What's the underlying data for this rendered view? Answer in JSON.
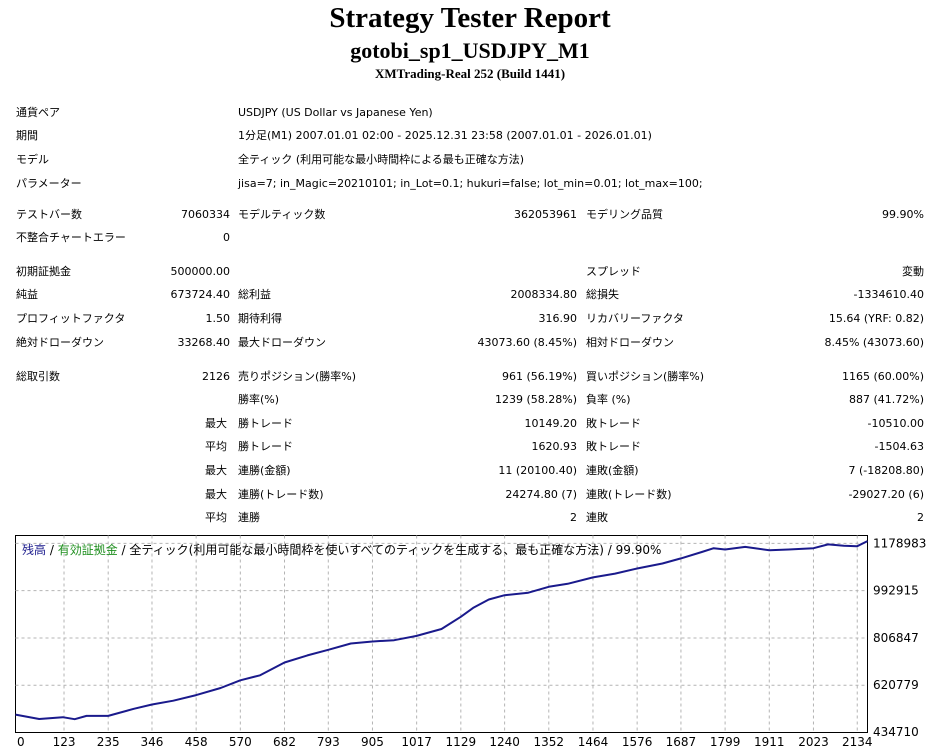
{
  "header": {
    "title": "Strategy Tester Report",
    "subtitle": "gotobi_sp1_USDJPY_M1",
    "server": "XMTrading-Real 252 (Build 1441)"
  },
  "info": [
    {
      "label": "通貨ペア",
      "value": "USDJPY (US Dollar vs Japanese Yen)"
    },
    {
      "label": "期間",
      "value": "1分足(M1) 2007.01.01 02:00 - 2025.12.31 23:58 (2007.01.01 - 2026.01.01)"
    },
    {
      "label": "モデル",
      "value": "全ティック (利用可能な最小時間枠による最も正確な方法)"
    },
    {
      "label": "パラメーター",
      "value": "jisa=7; in_Magic=20210101; in_Lot=0.1; hukuri=false; lot_min=0.01; lot_max=100;"
    }
  ],
  "stats": {
    "bars_label": "テストバー数",
    "bars": "7060334",
    "ticks_label": "モデルティック数",
    "ticks": "362053961",
    "quality_label": "モデリング品質",
    "quality": "99.90%",
    "errors_label": "不整合チャートエラー",
    "errors": "0",
    "deposit_label": "初期証拠金",
    "deposit": "500000.00",
    "spread_label": "スプレッド",
    "spread": "変動",
    "net_label": "純益",
    "net": "673724.40",
    "gross_profit_label": "総利益",
    "gross_profit": "2008334.80",
    "gross_loss_label": "総損失",
    "gross_loss": "-1334610.40",
    "pf_label": "プロフィットファクタ",
    "pf": "1.50",
    "expected_label": "期待利得",
    "expected": "316.90",
    "recovery_label": "リカバリーファクタ",
    "recovery": "15.64 (YRF: 0.82)",
    "abs_dd_label": "絶対ドローダウン",
    "abs_dd": "33268.40",
    "max_dd_label": "最大ドローダウン",
    "max_dd": "43073.60 (8.45%)",
    "rel_dd_label": "相対ドローダウン",
    "rel_dd": "8.45% (43073.60)"
  },
  "trades": {
    "total_label": "総取引数",
    "total": "2126",
    "short_label": "売りポジション(勝率%)",
    "short": "961 (56.19%)",
    "long_label": "買いポジション(勝率%)",
    "long": "1165 (60.00%)",
    "win_label": "勝率(%)",
    "win": "1239 (58.28%)",
    "loss_label": "負率 (%)",
    "loss": "887 (41.72%)",
    "max_word": "最大",
    "avg_word": "平均",
    "best_label": "勝トレード",
    "best": "10149.20",
    "worst_label": "敗トレード",
    "worst": "-10510.00",
    "avg_win_label": "勝トレード",
    "avg_win": "1620.93",
    "avg_loss_label": "敗トレード",
    "avg_loss": "-1504.63",
    "cons_wins_label": "連勝(金額)",
    "cons_wins": "11 (20100.40)",
    "cons_losses_label": "連敗(金額)",
    "cons_losses": "7 (-18208.80)",
    "cons_profit_label": "連勝(トレード数)",
    "cons_profit": "24274.80 (7)",
    "cons_loss_label": "連敗(トレード数)",
    "cons_loss": "-29027.20 (6)",
    "avg_cons_wins_label": "連勝",
    "avg_cons_wins": "2",
    "avg_cons_losses_label": "連敗",
    "avg_cons_losses": "2"
  },
  "chart_legend": {
    "balance": "残高",
    "equity": "有効証拠金",
    "sep": " / ",
    "rest": "全ティック(利用可能な最小時間枠を使いすべてのティックを生成する、最も正確な方法) / 99.90%"
  },
  "chart_data": {
    "type": "line",
    "line_color": "#1a1a8c",
    "x_ticks": [
      "0",
      "123",
      "235",
      "346",
      "458",
      "570",
      "682",
      "793",
      "905",
      "1017",
      "1129",
      "1240",
      "1352",
      "1464",
      "1576",
      "1687",
      "1799",
      "1911",
      "2023",
      "2134"
    ],
    "y_ticks": [
      "1178983",
      "992915",
      "806847",
      "620779",
      "434710"
    ],
    "xlim": [
      0,
      2160
    ],
    "ylim": [
      434710,
      1210000
    ],
    "grid": true,
    "series": [
      {
        "x": [
          0,
          60,
          120,
          150,
          180,
          235,
          300,
          346,
          400,
          458,
          520,
          570,
          620,
          682,
          740,
          793,
          850,
          905,
          960,
          1017,
          1080,
          1129,
          1160,
          1200,
          1240,
          1300,
          1352,
          1400,
          1464,
          1520,
          1576,
          1640,
          1687,
          1740,
          1770,
          1799,
          1850,
          1911,
          1960,
          2023,
          2060,
          2100,
          2134,
          2160
        ],
        "y": [
          505000,
          488000,
          495000,
          487000,
          500000,
          500000,
          528000,
          545000,
          560000,
          582000,
          610000,
          640000,
          660000,
          710000,
          738000,
          760000,
          785000,
          793000,
          798000,
          815000,
          842000,
          890000,
          925000,
          958000,
          975000,
          985000,
          1008000,
          1020000,
          1045000,
          1060000,
          1080000,
          1100000,
          1120000,
          1145000,
          1160000,
          1155000,
          1165000,
          1152000,
          1155000,
          1160000,
          1175000,
          1170000,
          1168000,
          1188000
        ]
      }
    ]
  }
}
